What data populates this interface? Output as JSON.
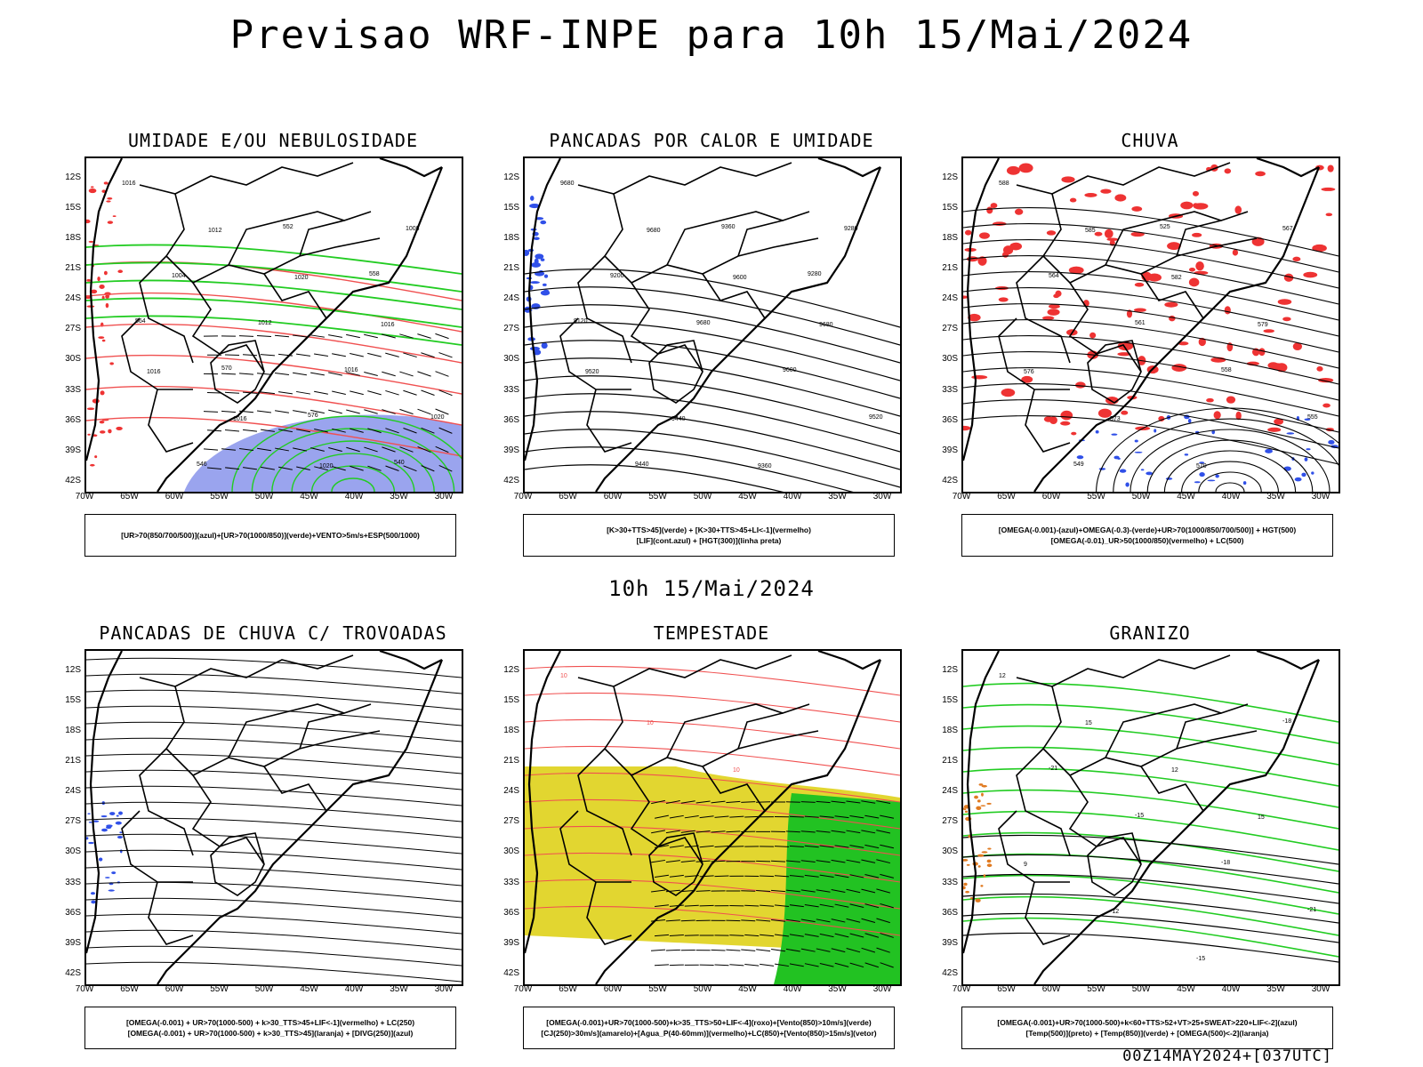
{
  "title": "Previsao WRF-INPE  para 10h 15/Mai/2024",
  "mid_title": "10h 15/Mai/2024",
  "footer": "00Z14MAY2024+[037UTC]",
  "lat_labels": [
    "12S",
    "15S",
    "18S",
    "21S",
    "24S",
    "27S",
    "30S",
    "33S",
    "36S",
    "39S",
    "42S"
  ],
  "lon_labels": [
    "70W",
    "65W",
    "60W",
    "55W",
    "50W",
    "45W",
    "40W",
    "35W",
    "30W"
  ],
  "panels": [
    {
      "title": "UMIDADE E/OU NEBULOSIDADE",
      "legend": [
        "[UR>70(850/700/500)](azul)+[UR>70(1000/850)](verde)+VENTO>5m/s+ESP(500/1000)"
      ],
      "contour_labels": [
        "1016",
        "1012",
        "1020",
        "1016",
        "1016",
        "1016",
        "1020",
        "1008",
        "1004",
        "1012",
        "1016",
        "1020",
        "546",
        "552",
        "558",
        "564",
        "570",
        "576",
        "540"
      ]
    },
    {
      "title": "PANCADAS POR CALOR E UMIDADE",
      "legend": [
        "[K>30+TTS>45](verde) + [K>30+TTS>45+LI<-1](vermelho)",
        "[LIF](cont.azul) + [HGT(300)](linha preta)"
      ],
      "contour_labels": [
        "9680",
        "9680",
        "9600",
        "9680",
        "9520",
        "9440",
        "9360",
        "9280",
        "9200",
        "9680",
        "9600",
        "9520",
        "9440",
        "9360",
        "9280",
        "9120"
      ]
    },
    {
      "title": "CHUVA",
      "legend": [
        "[OMEGA(-0.001)-(azul)+OMEGA(-0.3)-(verde)+UR>70(1000/850/700/500)] + HGT(500)",
        "[OMEGA(-0.01)_UR>50(1000/850)(vermelho) + LC(500)"
      ],
      "contour_labels": [
        "588",
        "585",
        "582",
        "579",
        "576",
        "573",
        "570",
        "567",
        "564",
        "561",
        "558",
        "555",
        "549",
        "525"
      ]
    },
    {
      "title": "PANCADAS DE CHUVA C/ TROVOADAS",
      "legend": [
        "[OMEGA(-0.001) + UR>70(1000-500) + k>30_TTS>45+LIF<-1](vermelho) + LC(250)",
        "[OMEGA(-0.001) + UR>70(1000-500) + k>30_TTS>45](laranja) + [DIVG(250)](azul)"
      ],
      "contour_labels": []
    },
    {
      "title": "TEMPESTADE",
      "legend": [
        "[OMEGA(-0.001)+UR>70(1000-500)+k>35_TTS>50+LIF<-4](roxo)+[Vento(850)>10m/s](verde)",
        "[CJ(250)>30m/s](amarelo)+[Agua_P(40-60mm)](vermelho)+LC(850)+[Vento(850)>15m/s](vetor)"
      ],
      "contour_labels": [
        "10",
        "10",
        "10"
      ]
    },
    {
      "title": "GRANIZO",
      "legend": [
        "[OMEGA(-0.001)+UR>70(1000-500)+k<60+TTS>52+VT>25+SWEAT>220+LIF<-2](azul)",
        "[Temp(500)](preto) + [Temp(850)](verde) + [OMEGA(500)<-2](laranja)"
      ],
      "contour_labels": [
        "12",
        "15",
        "12",
        "15",
        "9",
        "-12",
        "-15",
        "-18",
        "-21",
        "-15",
        "-18",
        "-21"
      ]
    }
  ],
  "colors": {
    "blue": "#3050e8",
    "green": "#22cc22",
    "red": "#ee3333",
    "yellow": "#e2d630",
    "orange": "#e07a20",
    "lightblue": "#9aa4ee",
    "darkgreen": "#22c222"
  }
}
